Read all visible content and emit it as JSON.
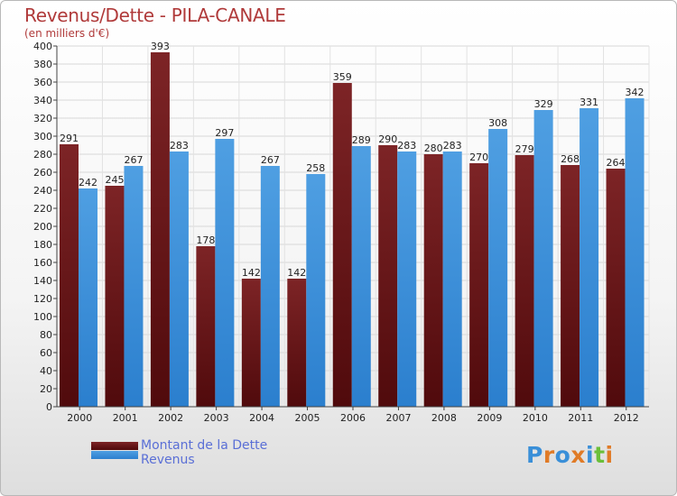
{
  "title": "Revenus/Dette - PILA-CANALE",
  "subtitle": "(en milliers d'€)",
  "legend": {
    "dette_label": "Montant de la Dette",
    "revenus_label": "Revenus"
  },
  "logo": {
    "text": "Proxiti",
    "letters": [
      "P",
      "r",
      "o",
      "x",
      "i",
      "t",
      "i"
    ],
    "letter_colors": [
      "#3a8fd8",
      "#e07b27",
      "#3a8fd8",
      "#e07b27",
      "#3a8fd8",
      "#6bbf3a",
      "#e07b27"
    ]
  },
  "colors": {
    "dette": "#7d2426",
    "dette_dark": "#500a0c",
    "revenus": "#4f9fe2",
    "revenus_dark": "#2b7fce",
    "title": "#b03a3a",
    "legend_text": "#5a6fd6"
  },
  "chart_data": {
    "type": "bar",
    "title": "Revenus/Dette - PILA-CANALE",
    "subtitle": "(en milliers d'€)",
    "categories": [
      "2000",
      "2001",
      "2002",
      "2003",
      "2004",
      "2005",
      "2006",
      "2007",
      "2008",
      "2009",
      "2010",
      "2011",
      "2012"
    ],
    "series": [
      {
        "name": "Montant de la Dette",
        "values": [
          291,
          245,
          393,
          178,
          142,
          142,
          359,
          290,
          280,
          270,
          279,
          268,
          264
        ]
      },
      {
        "name": "Revenus",
        "values": [
          242,
          267,
          283,
          297,
          267,
          258,
          289,
          283,
          283,
          308,
          329,
          331,
          342
        ]
      }
    ],
    "ylim": [
      0,
      400
    ],
    "ytick_step": 20,
    "grid": true,
    "legend_position": "bottom-left"
  }
}
